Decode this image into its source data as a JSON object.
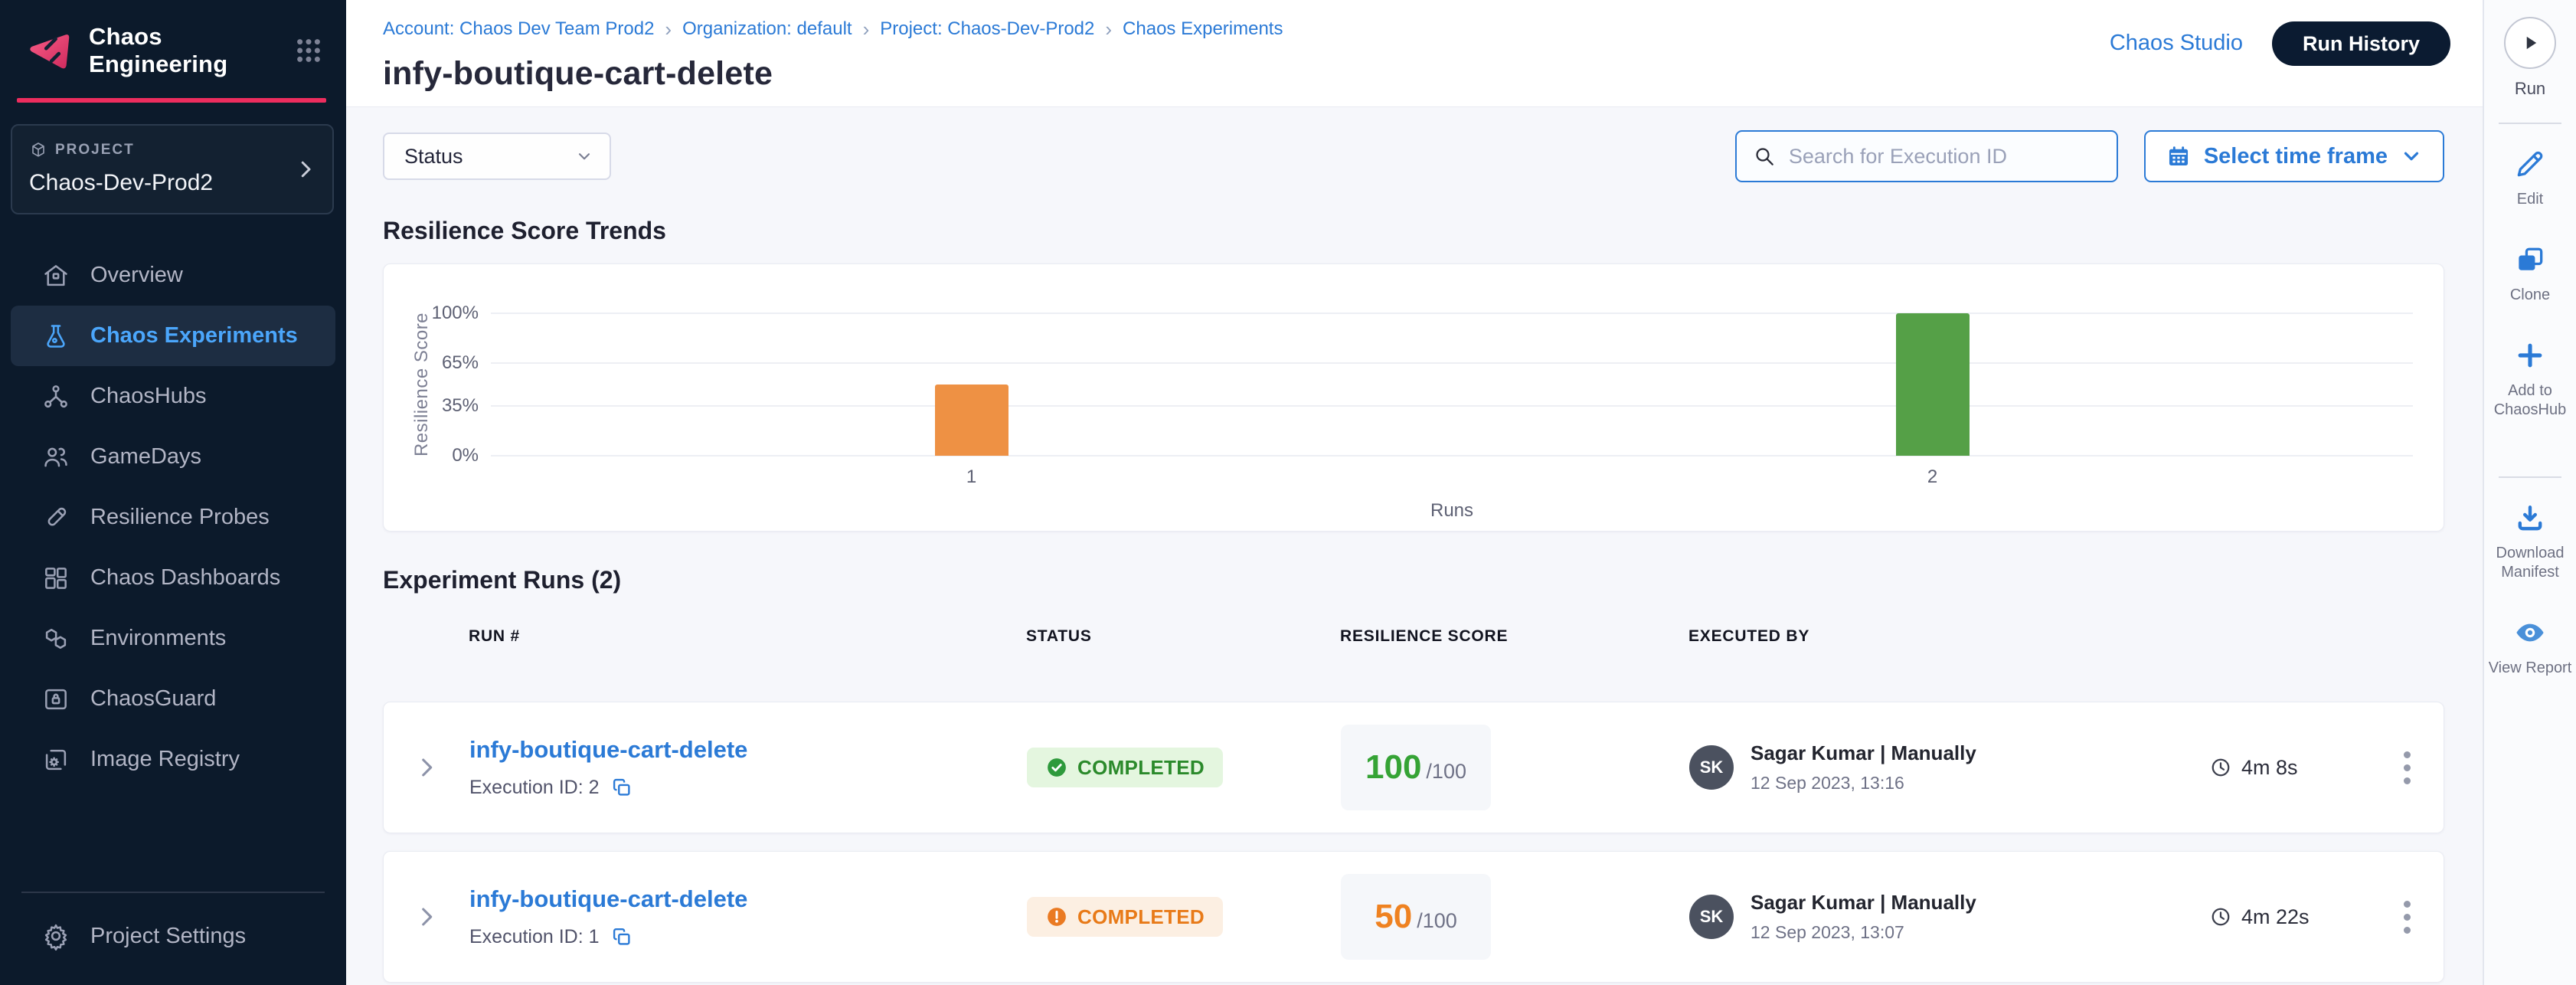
{
  "colors": {
    "brand_pink": "#ed2d5e",
    "sidebar_navy": "#0c1a2b",
    "primary_blue": "#2b7ad6",
    "success_green": "#2b8a2b",
    "warning_orange": "#e87a18"
  },
  "sidebar": {
    "app_title": "Chaos Engineering",
    "project_label": "PROJECT",
    "project_name": "Chaos-Dev-Prod2",
    "items": [
      {
        "label": "Overview",
        "active": false
      },
      {
        "label": "Chaos Experiments",
        "active": true
      },
      {
        "label": "ChaosHubs",
        "active": false
      },
      {
        "label": "GameDays",
        "active": false
      },
      {
        "label": "Resilience Probes",
        "active": false
      },
      {
        "label": "Chaos Dashboards",
        "active": false
      },
      {
        "label": "Environments",
        "active": false
      },
      {
        "label": "ChaosGuard",
        "active": false
      },
      {
        "label": "Image Registry",
        "active": false
      }
    ],
    "settings_label": "Project Settings"
  },
  "header": {
    "breadcrumb": [
      "Account: Chaos Dev Team Prod2",
      "Organization: default",
      "Project: Chaos-Dev-Prod2",
      "Chaos Experiments"
    ],
    "breadcrumb_separator": "›",
    "title": "infy-boutique-cart-delete",
    "chaos_studio_label": "Chaos Studio",
    "run_history_label": "Run History"
  },
  "filters": {
    "status_label": "Status",
    "search_placeholder": "Search for Execution ID",
    "time_frame_label": "Select time frame"
  },
  "chart_data": {
    "type": "bar",
    "title": "Resilience Score Trends",
    "xlabel": "Runs",
    "ylabel": "Resilience Score",
    "categories": [
      "1",
      "2"
    ],
    "values": [
      50,
      100
    ],
    "bar_colors": [
      "#ee9144",
      "#55a047"
    ],
    "ylim": [
      0,
      100
    ],
    "yticks": [
      0,
      35,
      65,
      100
    ],
    "ytick_labels": [
      "0%",
      "35%",
      "65%",
      "100%"
    ],
    "grid": true,
    "legend": "none"
  },
  "runs_section": {
    "title": "Experiment Runs (2)",
    "columns": [
      "RUN #",
      "STATUS",
      "RESILIENCE SCORE",
      "EXECUTED BY"
    ],
    "rows": [
      {
        "name": "infy-boutique-cart-delete",
        "execution_id_label": "Execution ID: 2",
        "status": "COMPLETED",
        "status_variant": "success",
        "score": "100",
        "score_total": "/100",
        "avatar_initials": "SK",
        "executed_by": "Sagar Kumar | Manually",
        "executed_at": "12 Sep 2023, 13:16",
        "duration": "4m 8s"
      },
      {
        "name": "infy-boutique-cart-delete",
        "execution_id_label": "Execution ID: 1",
        "status": "COMPLETED",
        "status_variant": "warning",
        "score": "50",
        "score_total": "/100",
        "avatar_initials": "SK",
        "executed_by": "Sagar Kumar | Manually",
        "executed_at": "12 Sep 2023, 13:07",
        "duration": "4m 22s"
      }
    ]
  },
  "right_toolbar": {
    "actions": [
      {
        "label": "Run"
      },
      {
        "label": "Edit"
      },
      {
        "label": "Clone"
      },
      {
        "label": "Add to ChaosHub"
      },
      {
        "label": "Download Manifest"
      },
      {
        "label": "View Report"
      }
    ]
  }
}
